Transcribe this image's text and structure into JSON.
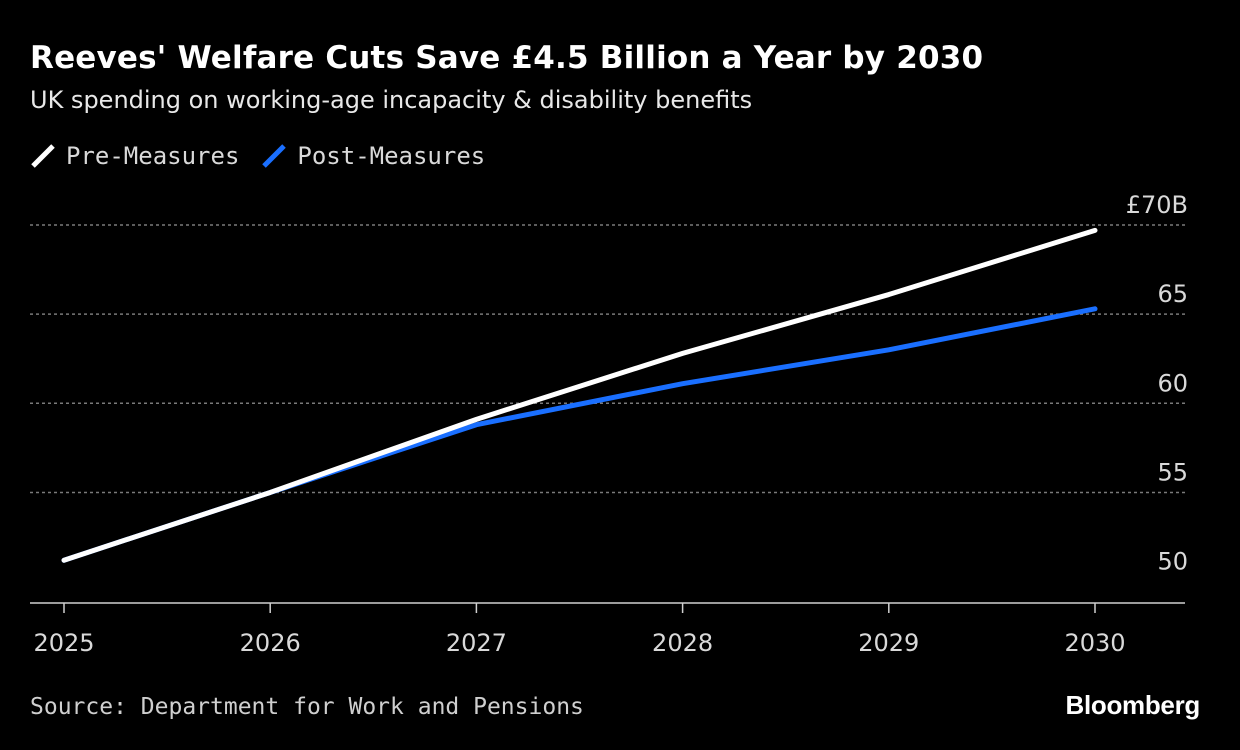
{
  "header": {
    "title": "Reeves' Welfare Cuts Save £4.5 Billion a Year by 2030",
    "subtitle": "UK spending on working-age incapacity & disability benefits"
  },
  "footer": {
    "source": "Source: Department for Work and Pensions",
    "brand": "Bloomberg"
  },
  "colors": {
    "background": "#000000",
    "pre_measures": "#ffffff",
    "post_measures": "#1a6fff",
    "grid": "#7a7a7a",
    "tick_text": "#d9d9d9"
  },
  "chart_data": {
    "type": "line",
    "title": "Reeves' Welfare Cuts Save £4.5 Billion a Year by 2030",
    "subtitle": "UK spending on working-age incapacity & disability benefits",
    "x": [
      "2025",
      "2026",
      "2027",
      "2028",
      "2029",
      "2030"
    ],
    "series": [
      {
        "name": "Pre-Measures",
        "color": "#ffffff",
        "values": [
          51.2,
          55.0,
          59.1,
          62.8,
          66.1,
          69.7
        ]
      },
      {
        "name": "Post-Measures",
        "color": "#1a6fff",
        "values": [
          51.2,
          55.0,
          58.8,
          61.1,
          63.0,
          65.3
        ]
      }
    ],
    "y_ticks": [
      {
        "value": 50,
        "label": "50"
      },
      {
        "value": 55,
        "label": "55"
      },
      {
        "value": 60,
        "label": "60"
      },
      {
        "value": 65,
        "label": "65"
      },
      {
        "value": 70,
        "label": "£70B"
      }
    ],
    "ylim": [
      48.8,
      70
    ],
    "grid": true,
    "grid_style": "dotted",
    "legend_position": "top-left",
    "y_axis_position": "right"
  }
}
